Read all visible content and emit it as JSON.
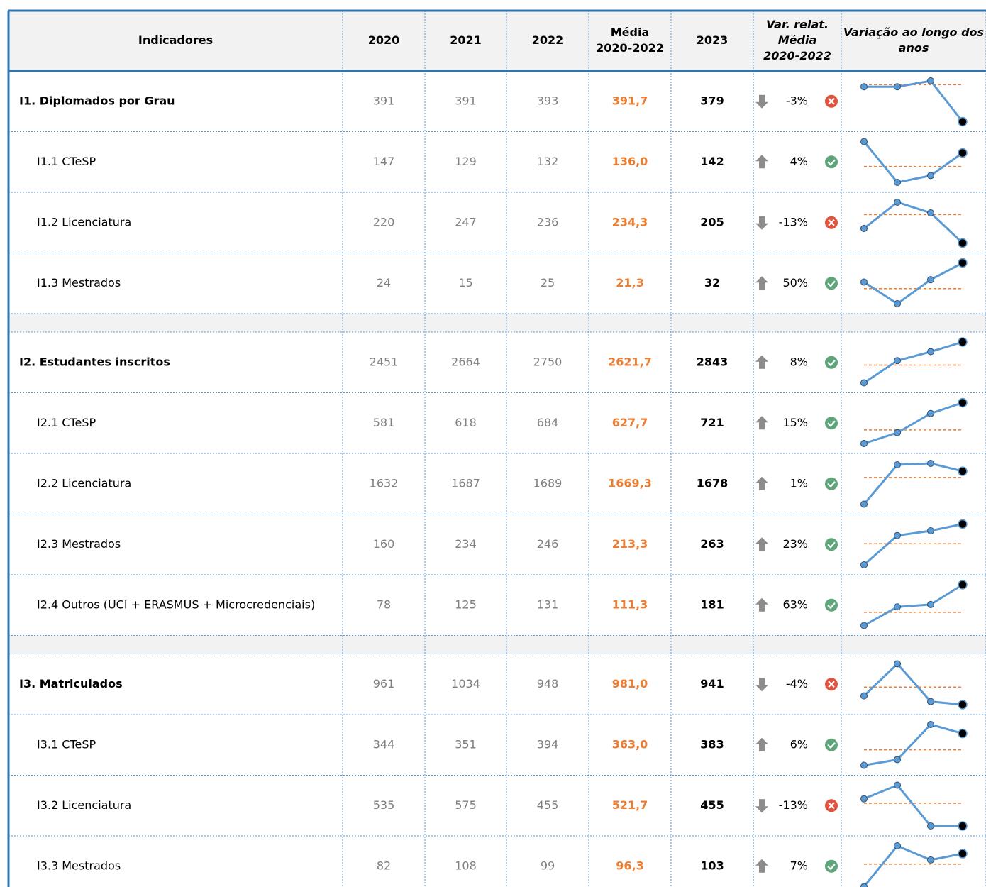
{
  "header": {
    "columns": [
      [
        "Indicadores"
      ],
      [
        "2020"
      ],
      [
        "2021"
      ],
      [
        "2022"
      ],
      [
        "Média",
        "2020-2022"
      ],
      [
        "2023"
      ],
      [
        "Var. relat.",
        "Média",
        "2020-2022"
      ],
      [
        "Variação ao longo dos",
        "anos"
      ]
    ]
  },
  "groups": [
    {
      "rows": [
        {
          "label": "I1. Diplomados por Grau",
          "bold": true,
          "values": [
            391,
            391,
            393
          ],
          "mean": {
            "value": 391.7,
            "label": "391,7"
          },
          "current": 379,
          "var": {
            "value": -3,
            "label": "-3%"
          }
        },
        {
          "label": "I1.1 CTeSP",
          "bold": false,
          "values": [
            147,
            129,
            132
          ],
          "mean": {
            "value": 136.0,
            "label": "136,0"
          },
          "current": 142,
          "var": {
            "value": 4,
            "label": "4%"
          }
        },
        {
          "label": "I1.2 Licenciatura",
          "bold": false,
          "values": [
            220,
            247,
            236
          ],
          "mean": {
            "value": 234.3,
            "label": "234,3"
          },
          "current": 205,
          "var": {
            "value": -13,
            "label": "-13%"
          }
        },
        {
          "label": "I1.3 Mestrados",
          "bold": false,
          "values": [
            24,
            15,
            25
          ],
          "mean": {
            "value": 21.3,
            "label": "21,3"
          },
          "current": 32,
          "var": {
            "value": 50,
            "label": "50%"
          }
        }
      ]
    },
    {
      "rows": [
        {
          "label": "I2. Estudantes inscritos",
          "bold": true,
          "values": [
            2451,
            2664,
            2750
          ],
          "mean": {
            "value": 2621.7,
            "label": "2621,7"
          },
          "current": 2843,
          "var": {
            "value": 8,
            "label": "8%"
          }
        },
        {
          "label": "I2.1 CTeSP",
          "bold": false,
          "values": [
            581,
            618,
            684
          ],
          "mean": {
            "value": 627.7,
            "label": "627,7"
          },
          "current": 721,
          "var": {
            "value": 15,
            "label": "15%"
          }
        },
        {
          "label": "I2.2 Licenciatura",
          "bold": false,
          "values": [
            1632,
            1687,
            1689
          ],
          "mean": {
            "value": 1669.3,
            "label": "1669,3"
          },
          "current": 1678,
          "var": {
            "value": 1,
            "label": "1%"
          }
        },
        {
          "label": "I2.3 Mestrados",
          "bold": false,
          "values": [
            160,
            234,
            246
          ],
          "mean": {
            "value": 213.3,
            "label": "213,3"
          },
          "current": 263,
          "var": {
            "value": 23,
            "label": "23%"
          }
        },
        {
          "label": "I2.4 Outros (UCI + ERASMUS + Microcredenciais)",
          "bold": false,
          "values": [
            78,
            125,
            131
          ],
          "mean": {
            "value": 111.3,
            "label": "111,3"
          },
          "current": 181,
          "var": {
            "value": 63,
            "label": "63%"
          }
        }
      ]
    },
    {
      "rows": [
        {
          "label": "I3. Matriculados",
          "bold": true,
          "values": [
            961,
            1034,
            948
          ],
          "mean": {
            "value": 981.0,
            "label": "981,0"
          },
          "current": 941,
          "var": {
            "value": -4,
            "label": "-4%"
          }
        },
        {
          "label": "I3.1 CTeSP",
          "bold": false,
          "values": [
            344,
            351,
            394
          ],
          "mean": {
            "value": 363.0,
            "label": "363,0"
          },
          "current": 383,
          "var": {
            "value": 6,
            "label": "6%"
          }
        },
        {
          "label": "I3.2 Licenciatura",
          "bold": false,
          "values": [
            535,
            575,
            455
          ],
          "mean": {
            "value": 521.7,
            "label": "521,7"
          },
          "current": 455,
          "var": {
            "value": -13,
            "label": "-13%"
          }
        },
        {
          "label": "I3.3 Mestrados",
          "bold": false,
          "values": [
            82,
            108,
            99
          ],
          "mean": {
            "value": 96.3,
            "label": "96,3"
          },
          "current": 103,
          "var": {
            "value": 7,
            "label": "7%"
          }
        }
      ]
    }
  ]
}
